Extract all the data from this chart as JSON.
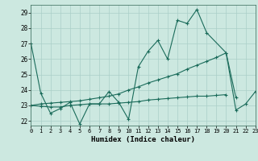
{
  "title": "",
  "xlabel": "Humidex (Indice chaleur)",
  "bg_color": "#cce8e0",
  "grid_color": "#aacfc8",
  "line_color": "#1a6b5a",
  "xlim": [
    0,
    23
  ],
  "ylim": [
    21.7,
    29.5
  ],
  "xticks": [
    0,
    1,
    2,
    3,
    4,
    5,
    6,
    7,
    8,
    9,
    10,
    11,
    12,
    13,
    14,
    15,
    16,
    17,
    18,
    19,
    20,
    21,
    22,
    23
  ],
  "yticks": [
    22,
    23,
    24,
    25,
    26,
    27,
    28,
    29
  ],
  "series": [
    [
      27.0,
      23.8,
      22.5,
      22.8,
      23.2,
      21.8,
      23.1,
      23.1,
      23.9,
      23.2,
      22.1,
      25.5,
      26.5,
      27.2,
      26.0,
      28.5,
      28.3,
      29.2,
      27.7,
      null,
      26.4,
      22.7,
      23.1,
      23.9
    ],
    [
      23.0,
      23.1,
      23.15,
      23.2,
      23.25,
      23.3,
      23.4,
      23.5,
      23.6,
      23.75,
      24.0,
      24.2,
      24.45,
      24.65,
      24.85,
      25.05,
      25.35,
      25.6,
      25.85,
      26.1,
      26.4,
      23.5,
      null,
      null
    ],
    [
      23.0,
      22.95,
      22.9,
      22.9,
      23.0,
      23.05,
      23.1,
      23.1,
      23.1,
      23.15,
      23.2,
      23.25,
      23.35,
      23.4,
      23.45,
      23.5,
      23.55,
      23.6,
      23.6,
      23.65,
      23.7,
      null,
      null,
      null
    ]
  ]
}
